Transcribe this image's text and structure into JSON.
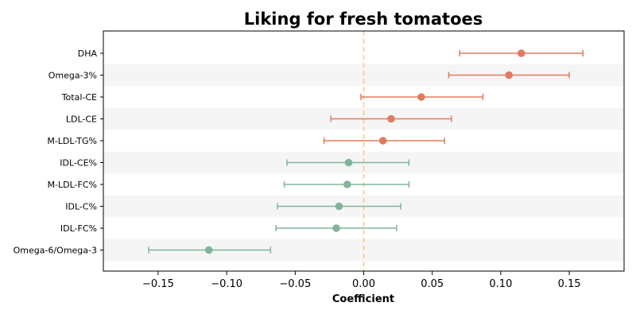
{
  "chart_data": {
    "type": "forest",
    "title": "Liking for fresh tomatoes",
    "xlabel": "Coefficient",
    "ylabel": "",
    "xlim": [
      -0.19,
      0.19
    ],
    "xticks": [
      -0.15,
      -0.1,
      -0.05,
      0.0,
      0.05,
      0.1,
      0.15
    ],
    "xtick_labels": [
      "−0.15",
      "−0.10",
      "−0.05",
      "0.00",
      "0.05",
      "0.10",
      "0.15"
    ],
    "reference_line": 0,
    "grid": false,
    "alternating_row_shading": true,
    "colors": {
      "positive": "#e07b5f",
      "negative": "#7fb59a",
      "reference": "#f5c77e",
      "shade": "#f5f5f5"
    },
    "rows": [
      {
        "label": "DHA",
        "estimate": 0.115,
        "lower": 0.07,
        "upper": 0.16,
        "group": "positive"
      },
      {
        "label": "Omega-3%",
        "estimate": 0.106,
        "lower": 0.062,
        "upper": 0.15,
        "group": "positive"
      },
      {
        "label": "Total-CE",
        "estimate": 0.042,
        "lower": -0.002,
        "upper": 0.087,
        "group": "positive"
      },
      {
        "label": "LDL-CE",
        "estimate": 0.02,
        "lower": -0.024,
        "upper": 0.064,
        "group": "positive"
      },
      {
        "label": "M-LDL-TG%",
        "estimate": 0.014,
        "lower": -0.029,
        "upper": 0.059,
        "group": "positive"
      },
      {
        "label": "IDL-CE%",
        "estimate": -0.011,
        "lower": -0.056,
        "upper": 0.033,
        "group": "negative"
      },
      {
        "label": "M-LDL-FC%",
        "estimate": -0.012,
        "lower": -0.058,
        "upper": 0.033,
        "group": "negative"
      },
      {
        "label": "IDL-C%",
        "estimate": -0.018,
        "lower": -0.063,
        "upper": 0.027,
        "group": "negative"
      },
      {
        "label": "IDL-FC%",
        "estimate": -0.02,
        "lower": -0.064,
        "upper": 0.024,
        "group": "negative"
      },
      {
        "label": "Omega-6/Omega-3",
        "estimate": -0.113,
        "lower": -0.157,
        "upper": -0.068,
        "group": "negative"
      }
    ]
  }
}
